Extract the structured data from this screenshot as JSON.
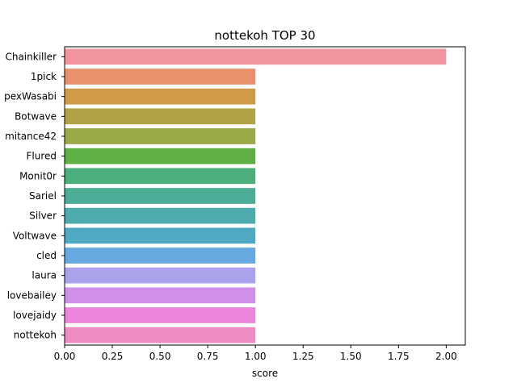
{
  "chart_data": {
    "type": "bar",
    "orientation": "horizontal",
    "title": "nottekoh TOP 30",
    "xlabel": "score",
    "ylabel": "",
    "xlim": [
      0,
      2.1
    ],
    "xticks": [
      0.0,
      0.25,
      0.5,
      0.75,
      1.0,
      1.25,
      1.5,
      1.75,
      2.0
    ],
    "xtick_labels": [
      "0.00",
      "0.25",
      "0.50",
      "0.75",
      "1.00",
      "1.25",
      "1.50",
      "1.75",
      "2.00"
    ],
    "grid": false,
    "categories": [
      "Chainkiller",
      "1pick",
      "pexWasabi",
      "Botwave",
      "mitance42",
      "Flured",
      "Monit0r",
      "Sariel",
      "Silver",
      "Voltwave",
      "cled",
      "laura",
      "lovebailey",
      "lovejaidy",
      "nottekoh"
    ],
    "values": [
      2,
      1,
      1,
      1,
      1,
      1,
      1,
      1,
      1,
      1,
      1,
      1,
      1,
      1,
      1
    ],
    "colors": [
      "#f0959f",
      "#e9916d",
      "#cf9b47",
      "#b2a247",
      "#9aa847",
      "#5eb045",
      "#4bae7c",
      "#4cac98",
      "#4daaad",
      "#4fa9c3",
      "#65a9e0",
      "#aaa3ec",
      "#d08fe8",
      "#eb86dc",
      "#ec8cc0"
    ]
  }
}
